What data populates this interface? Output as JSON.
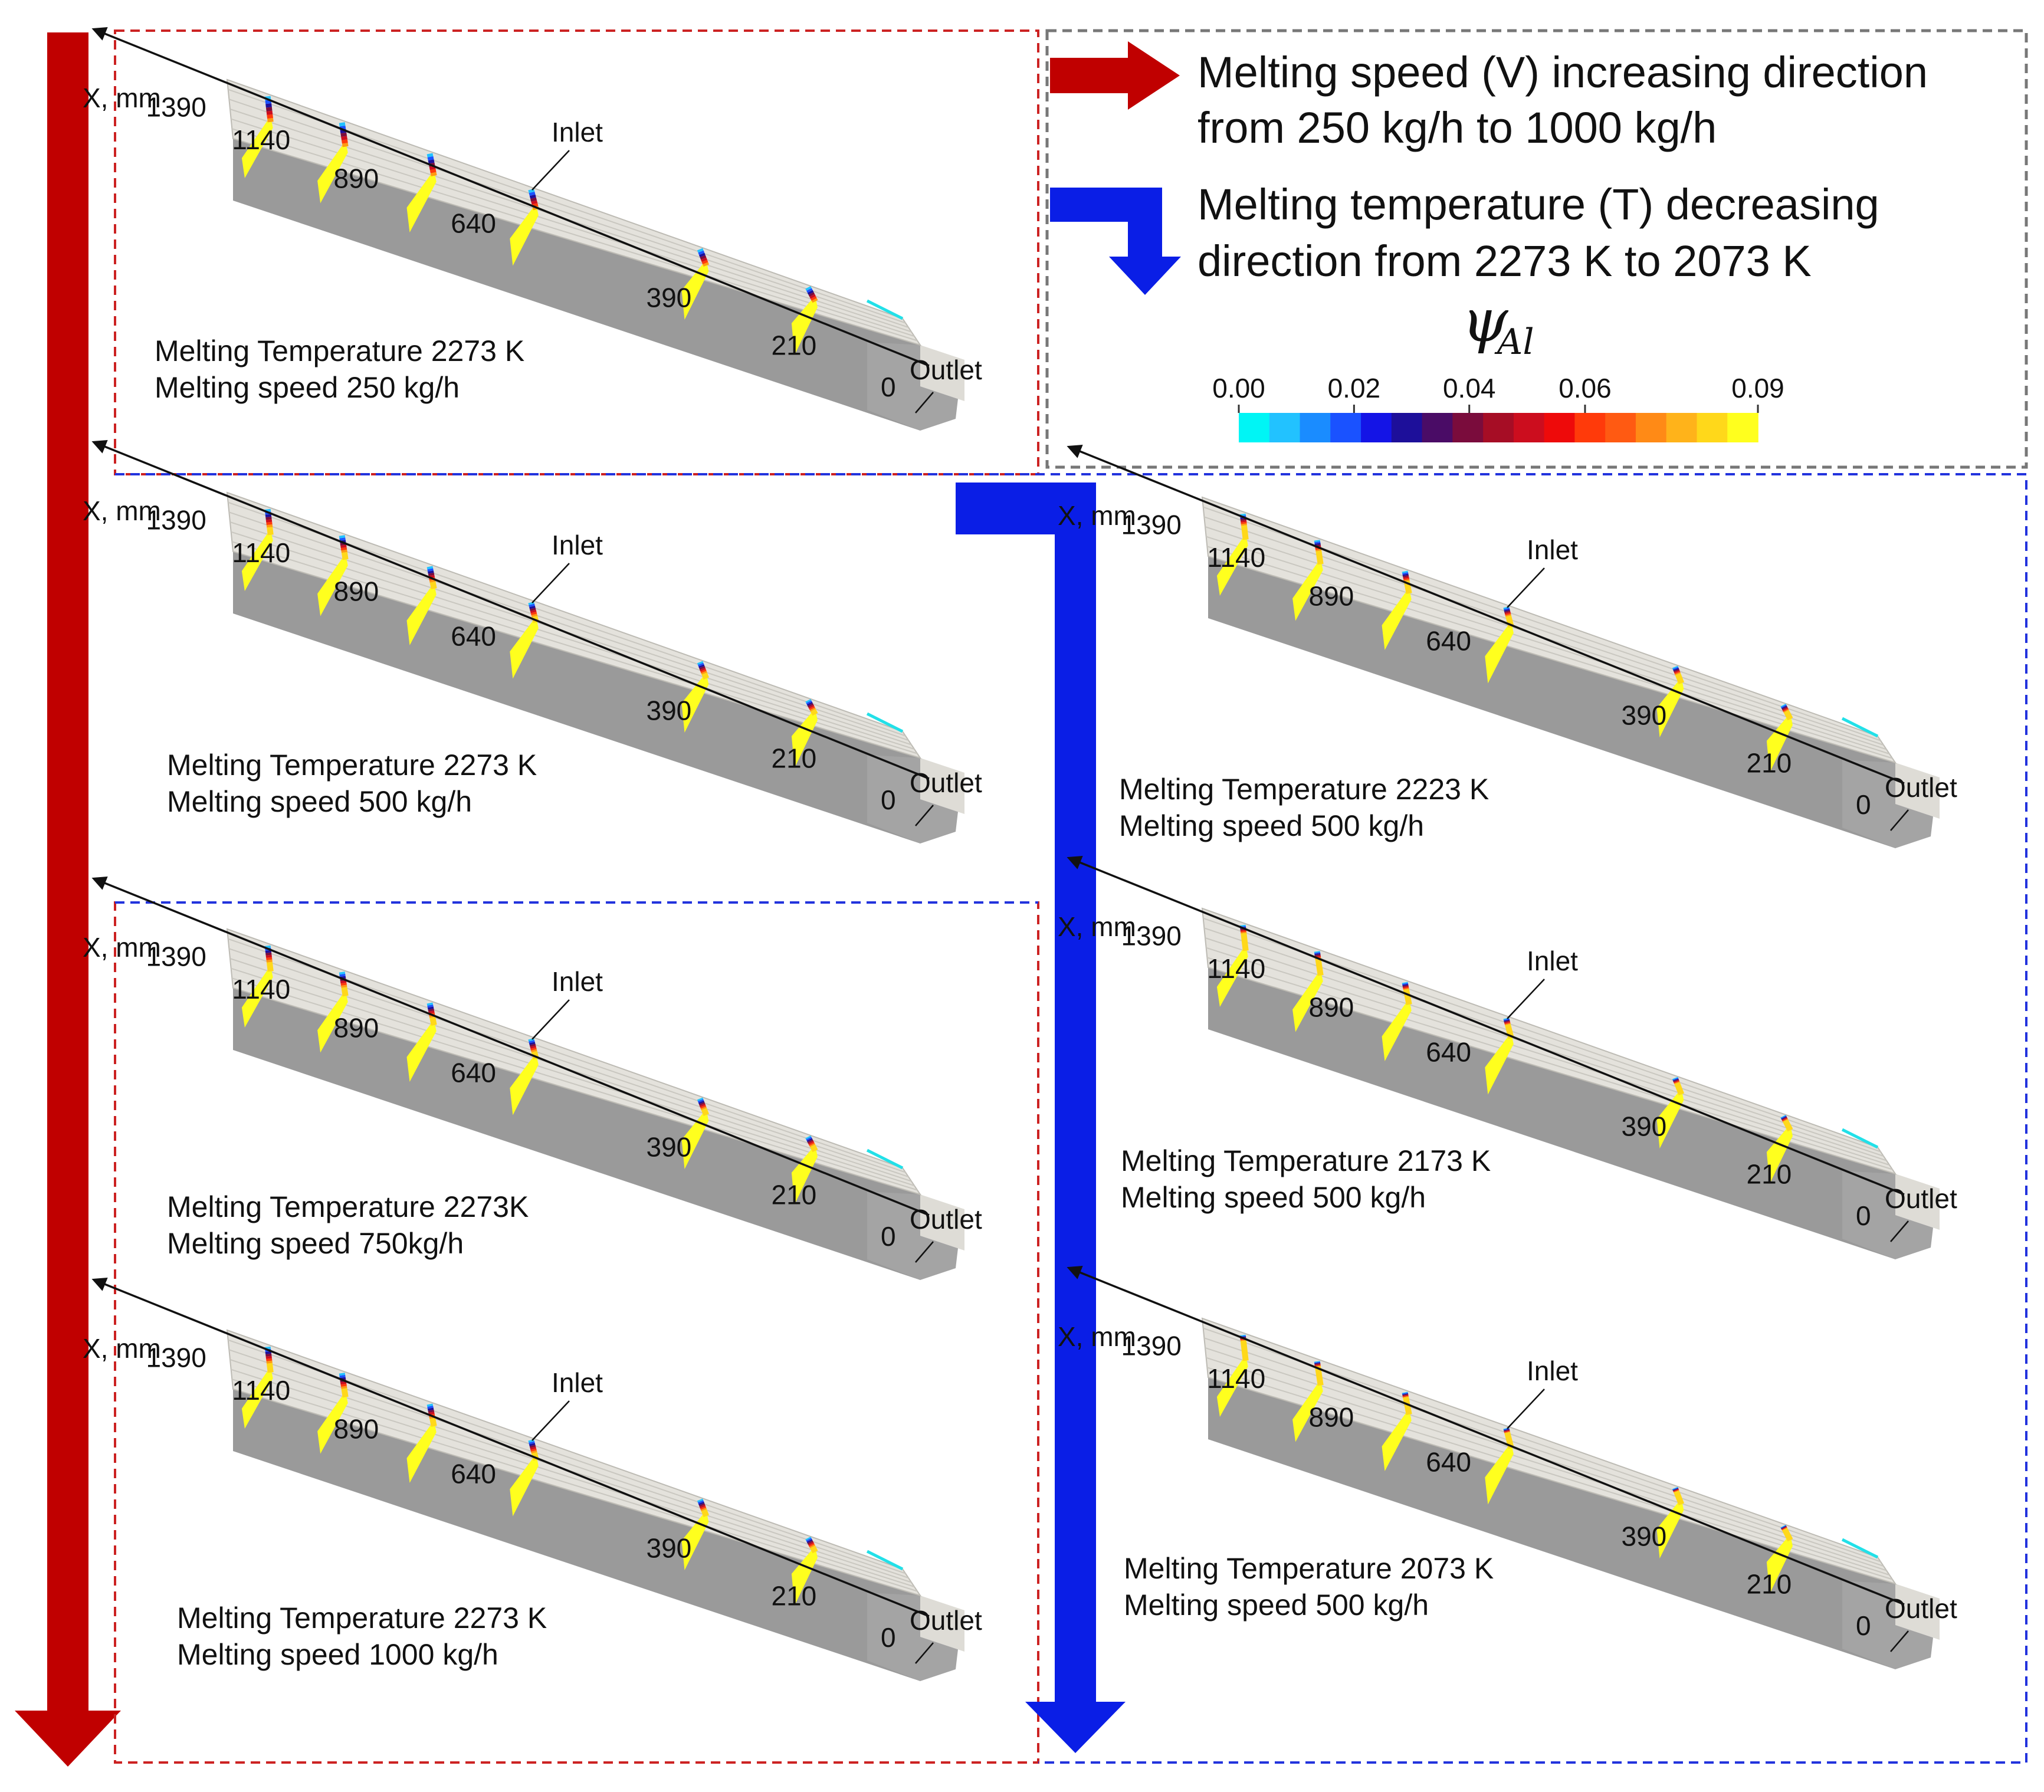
{
  "legend": {
    "speed_line1": "Melting speed (V) increasing direction",
    "speed_line2": "from 250 kg/h to 1000 kg/h",
    "temp_line1": "Melting temperature (T) decreasing",
    "temp_line2": "direction from 2273 K to 2073 K",
    "colorbar_symbol": "ψ",
    "colorbar_subscript": "Al",
    "colorbar_ticks": [
      "0.00",
      "0.02",
      "0.04",
      "0.06",
      "0.09"
    ],
    "colorbar_colors": [
      "#00f5f5",
      "#22c2ff",
      "#1a8cff",
      "#1a52ff",
      "#1414e6",
      "#1d0f9a",
      "#4a0c66",
      "#7a0c3c",
      "#a60d25",
      "#cc0d1e",
      "#ee0a0a",
      "#ff3a0a",
      "#ff5a12",
      "#ff8a16",
      "#ffb31a",
      "#ffd81a",
      "#ffff1e"
    ]
  },
  "colors": {
    "speed_arrow": "#c00000",
    "temp_arrow": "#0a1ee6",
    "speed_frame": "#cc2222",
    "temp_frame": "#2233dd",
    "legend_frame": "#777777",
    "channel_top": "#e4e2dc",
    "channel_side": "#9a9a9a"
  },
  "axis_label": "X, mm",
  "inlet_label": "Inlet",
  "outlet_label": "Outlet",
  "x_ticks": [
    "1390",
    "1140",
    "890",
    "640",
    "390",
    "210",
    "0"
  ],
  "panels": [
    {
      "id": "t2273-v250",
      "caption1": "Melting Temperature 2273 K",
      "caption2": "Melting speed 250 kg/h",
      "fringe": 0.45
    },
    {
      "id": "t2273-v500",
      "caption1": "Melting Temperature 2273 K",
      "caption2": "Melting speed 500 kg/h",
      "fringe": 0.22
    },
    {
      "id": "t2273-v750",
      "caption1": "Melting Temperature 2273K",
      "caption2": "Melting speed 750kg/h",
      "fringe": 0.2
    },
    {
      "id": "t2273-v1000",
      "caption1": "Melting Temperature 2273 K",
      "caption2": "Melting speed 1000 kg/h",
      "fringe": 0.2
    },
    {
      "id": "t2223-v500",
      "caption1": "Melting Temperature 2223 K",
      "caption2": "Melting speed 500 kg/h",
      "fringe": 0.14
    },
    {
      "id": "t2173-v500",
      "caption1": "Melting Temperature 2173 K",
      "caption2": "Melting speed 500 kg/h",
      "fringe": 0.1
    },
    {
      "id": "t2073-v500",
      "caption1": "Melting Temperature 2073 K",
      "caption2": "Melting speed 500 kg/h",
      "fringe": 0.07
    }
  ]
}
